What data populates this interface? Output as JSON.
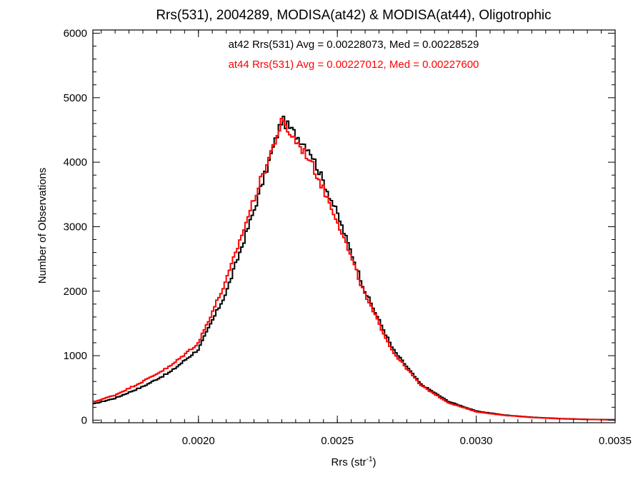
{
  "chart_data": {
    "type": "line",
    "style": "step-histogram",
    "title": "Rrs(531), 2004289, MODISA(at42) & MODISA(at44), Oligotrophic",
    "xlabel": "Rrs (str",
    "xlabel_superscript": "-1",
    "xlabel_close": ")",
    "ylabel": "Number of Observations",
    "xlim": [
      0.00162,
      0.0035
    ],
    "ylim": [
      -40,
      6050
    ],
    "xticks": [
      0.002,
      0.0025,
      0.003,
      0.0035
    ],
    "xtick_labels": [
      "0.0020",
      "0.0025",
      "0.0030",
      "0.0035"
    ],
    "yticks": [
      0,
      1000,
      2000,
      3000,
      4000,
      5000,
      6000
    ],
    "ytick_labels": [
      "0",
      "1000",
      "2000",
      "3000",
      "4000",
      "5000",
      "6000"
    ],
    "grid": false,
    "annotations": [
      {
        "text": "at42 Rrs(531) Avg = 0.00228073, Med = 0.00228529",
        "color": "#000000"
      },
      {
        "text": "at44 Rrs(531) Avg = 0.00227012, Med = 0.00227600",
        "color": "#ff0000"
      }
    ],
    "x": [
      0.00162,
      0.0017,
      0.0018,
      0.0019,
      0.002,
      0.0021,
      0.0022,
      0.0023,
      0.0024,
      0.0025,
      0.0026,
      0.0027,
      0.0028,
      0.0029,
      0.003,
      0.0031,
      0.0032,
      0.0033,
      0.0034,
      0.0035
    ],
    "series": [
      {
        "color": "#000000",
        "values": [
          250,
          340,
          520,
          750,
          1100,
          1980,
          3250,
          4660,
          4200,
          3200,
          2000,
          1100,
          560,
          290,
          140,
          80,
          45,
          25,
          12,
          6
        ]
      },
      {
        "color": "#ff0000",
        "values": [
          280,
          390,
          600,
          840,
          1200,
          2160,
          3430,
          4620,
          4050,
          3100,
          1930,
          1060,
          540,
          270,
          130,
          75,
          42,
          22,
          11,
          5
        ]
      }
    ]
  }
}
